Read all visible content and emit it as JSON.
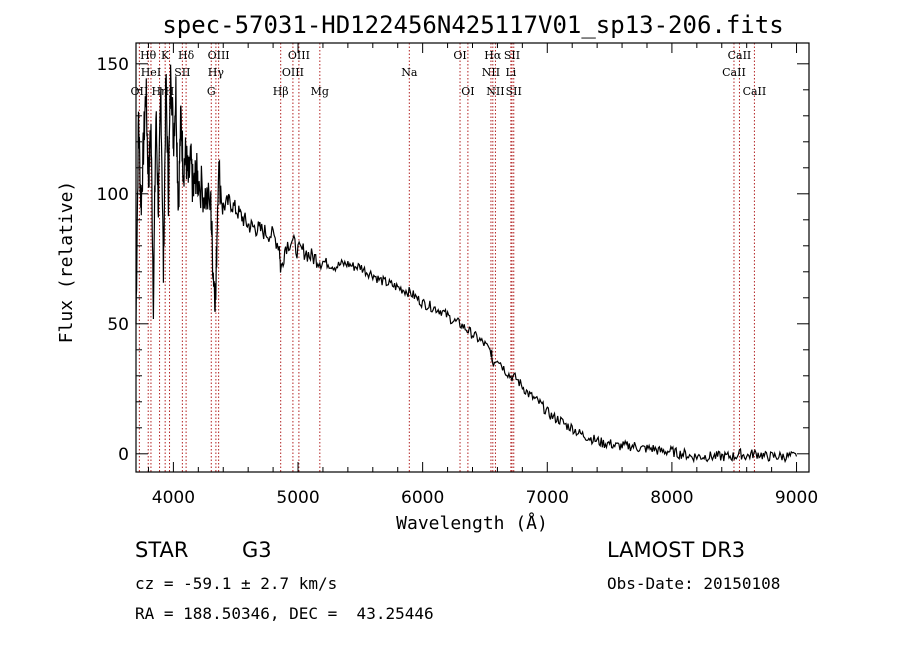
{
  "chart_data": {
    "type": "line",
    "title": "spec-57031-HD122456N425117V01_sp13-206.fits",
    "xlabel": "Wavelength (Å)",
    "ylabel": "Flux (relative)",
    "xlim": [
      3700,
      9100
    ],
    "ylim": [
      -7,
      158
    ],
    "xticks": [
      4000,
      5000,
      6000,
      7000,
      8000,
      9000
    ],
    "yticks": [
      0,
      50,
      100,
      150
    ],
    "series": [
      {
        "name": "spectrum",
        "x": [
          3700,
          3720,
          3740,
          3760,
          3780,
          3800,
          3820,
          3840,
          3860,
          3880,
          3900,
          3920,
          3940,
          3960,
          3980,
          4000,
          4020,
          4040,
          4060,
          4080,
          4100,
          4120,
          4140,
          4160,
          4180,
          4200,
          4250,
          4300,
          4320,
          4340,
          4360,
          4400,
          4450,
          4500,
          4550,
          4600,
          4650,
          4700,
          4750,
          4800,
          4850,
          4861,
          4900,
          4950,
          5000,
          5050,
          5100,
          5150,
          5200,
          5250,
          5300,
          5350,
          5400,
          5450,
          5500,
          5550,
          5600,
          5650,
          5700,
          5750,
          5800,
          5850,
          5900,
          5950,
          6000,
          6050,
          6100,
          6150,
          6200,
          6250,
          6300,
          6350,
          6400,
          6450,
          6500,
          6550,
          6563,
          6600,
          6650,
          6700,
          6750,
          6800,
          6850,
          6900,
          6950,
          7000,
          7050,
          7100,
          7150,
          7200,
          7250,
          7300,
          7350,
          7400,
          7450,
          7500,
          7550,
          7600,
          7650,
          7700,
          7750,
          7800,
          7850,
          7900,
          7950,
          8000,
          8050,
          8100,
          8150,
          8200,
          8250,
          8300,
          8350,
          8400,
          8450,
          8500,
          8550,
          8600,
          8650,
          8700,
          8750,
          8800,
          8850,
          8900,
          8950,
          9000
        ],
        "values": [
          50,
          130,
          95,
          118,
          140,
          105,
          125,
          60,
          130,
          95,
          140,
          70,
          145,
          100,
          150,
          120,
          140,
          95,
          130,
          110,
          115,
          105,
          112,
          100,
          108,
          105,
          100,
          95,
          70,
          60,
          110,
          95,
          97,
          94,
          91,
          88,
          87,
          86,
          85,
          84,
          80,
          70,
          80,
          82,
          78,
          78,
          76,
          75,
          74,
          73,
          72,
          73,
          73,
          72,
          72,
          70,
          69,
          67,
          66,
          65,
          64,
          63,
          62,
          60,
          58,
          57,
          56,
          55,
          53,
          51,
          50,
          48,
          46,
          44,
          42,
          39,
          35,
          37,
          33,
          30,
          29,
          26,
          23,
          21,
          19,
          16,
          14,
          13,
          11,
          10,
          8,
          7,
          6,
          5,
          4,
          4,
          3,
          3,
          3,
          3,
          2,
          2,
          2,
          1,
          1,
          1,
          0,
          0,
          -1,
          -1,
          -1,
          -1,
          -1,
          -1,
          -1,
          -1,
          0,
          -1,
          0,
          0,
          -1,
          -1,
          -1,
          -1,
          -1,
          -1
        ]
      }
    ],
    "line_color": "#000000",
    "marker_color": "#b22222",
    "lines": [
      {
        "w": 3727,
        "label": "OII",
        "row": 2
      },
      {
        "w": 3798,
        "label": "Hθ",
        "row": 0
      },
      {
        "w": 3820,
        "label": "HeI",
        "row": 1
      },
      {
        "w": 3889,
        "label": "Hη",
        "row": 2
      },
      {
        "w": 3934,
        "label": "K",
        "row": 0
      },
      {
        "w": 3969,
        "label": "H",
        "row": 2
      },
      {
        "w": 4072,
        "label": "SII",
        "row": 1
      },
      {
        "w": 4102,
        "label": "Hδ",
        "row": 0
      },
      {
        "w": 4304,
        "label": "G",
        "row": 2
      },
      {
        "w": 4341,
        "label": "Hγ",
        "row": 1
      },
      {
        "w": 4363,
        "label": "OIII",
        "row": 0
      },
      {
        "w": 4861,
        "label": "Hβ",
        "row": 2
      },
      {
        "w": 4959,
        "label": "OIII",
        "row": 1
      },
      {
        "w": 5007,
        "label": "OIII",
        "row": 0
      },
      {
        "w": 5175,
        "label": "Mg",
        "row": 2
      },
      {
        "w": 5893,
        "label": "Na",
        "row": 1
      },
      {
        "w": 6300,
        "label": "OI",
        "row": 0
      },
      {
        "w": 6363,
        "label": "OI",
        "row": 2
      },
      {
        "w": 6548,
        "label": "NII",
        "row": 1
      },
      {
        "w": 6563,
        "label": "Hα",
        "row": 0
      },
      {
        "w": 6584,
        "label": "NII",
        "row": 2
      },
      {
        "w": 6708,
        "label": "Li",
        "row": 1
      },
      {
        "w": 6717,
        "label": "SII",
        "row": 0
      },
      {
        "w": 6731,
        "label": "SII",
        "row": 2
      },
      {
        "w": 8498,
        "label": "CaII",
        "row": 1
      },
      {
        "w": 8542,
        "label": "CaII",
        "row": 0
      },
      {
        "w": 8662,
        "label": "CaII",
        "row": 2
      }
    ]
  },
  "info": {
    "class": "STAR",
    "subclass": "G3",
    "survey": "LAMOST DR3",
    "cz": "cz = -59.1 ± 2.7 km/s",
    "obs_date": "Obs-Date: 20150108",
    "coords": "RA = 188.50346, DEC =  43.25446"
  }
}
